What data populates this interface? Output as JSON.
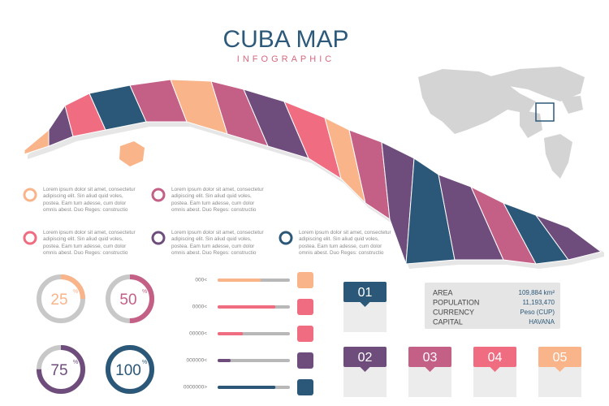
{
  "header": {
    "title": "CUBA MAP",
    "subtitle": "INFOGRAPHIC"
  },
  "notes": [
    "Lorem ipsum dolor sit amet, consectetur adipiscing elit. Sin aliud quid voles, postea. Eam tum adesse, cum dolor omnis abest. Duo Reges: constructio",
    "Lorem ipsum dolor sit amet, consectetur adipiscing elit. Sin aliud quid voles, postea. Eam tum adesse, cum dolor omnis abest. Duo Reges: constructio",
    "Lorem ipsum dolor sit amet, consectetur adipiscing elit. Sin aliud quid voles, postea. Eam tum adesse, cum dolor omnis abest. Duo Reges: constructio",
    "Lorem ipsum dolor sit amet, consectetur adipiscing elit. Sin aliud quid voles, postea. Eam tum adesse, cum dolor omnis abest. Duo Reges: constructio",
    "Lorem ipsum dolor sit amet, consectetur adipiscing elit. Sin aliud quid voles, postea. Eam tum adesse, cum dolor omnis abest. Duo Reges: constructio"
  ],
  "donut_range": [
    0,
    100
  ],
  "donuts": [
    {
      "value": 25,
      "unit": "%",
      "color": "#f9b48a"
    },
    {
      "value": 50,
      "unit": "%",
      "color": "#c45f86"
    },
    {
      "value": 75,
      "unit": "%",
      "color": "#6e4d7d"
    },
    {
      "value": 100,
      "unit": "%",
      "color": "#2b5878"
    }
  ],
  "bar_range": [
    0,
    100
  ],
  "bars": [
    {
      "label": "000<",
      "value": 60,
      "color": "#f9b48a"
    },
    {
      "label": "0000<",
      "value": 80,
      "color": "#f06c81"
    },
    {
      "label": "00000<",
      "value": 35,
      "color": "#f06c81"
    },
    {
      "label": "000000<",
      "value": 18,
      "color": "#6e4d7d"
    },
    {
      "label": "0000000>",
      "value": 80,
      "color": "#2b5878"
    }
  ],
  "boxes": [
    {
      "label": "01",
      "color": "#2b5878"
    },
    {
      "label": "02",
      "color": "#6e4d7d"
    },
    {
      "label": "03",
      "color": "#c45f86"
    },
    {
      "label": "04",
      "color": "#f06c81"
    },
    {
      "label": "05",
      "color": "#f9b48a"
    }
  ],
  "facts": [
    [
      "AREA",
      "109,884 km²"
    ],
    [
      "POPULATION",
      "11,193,470"
    ],
    [
      "CURRENCY",
      "Peso (CUP)"
    ],
    [
      "CAPITAL",
      "HAVANA"
    ]
  ]
}
